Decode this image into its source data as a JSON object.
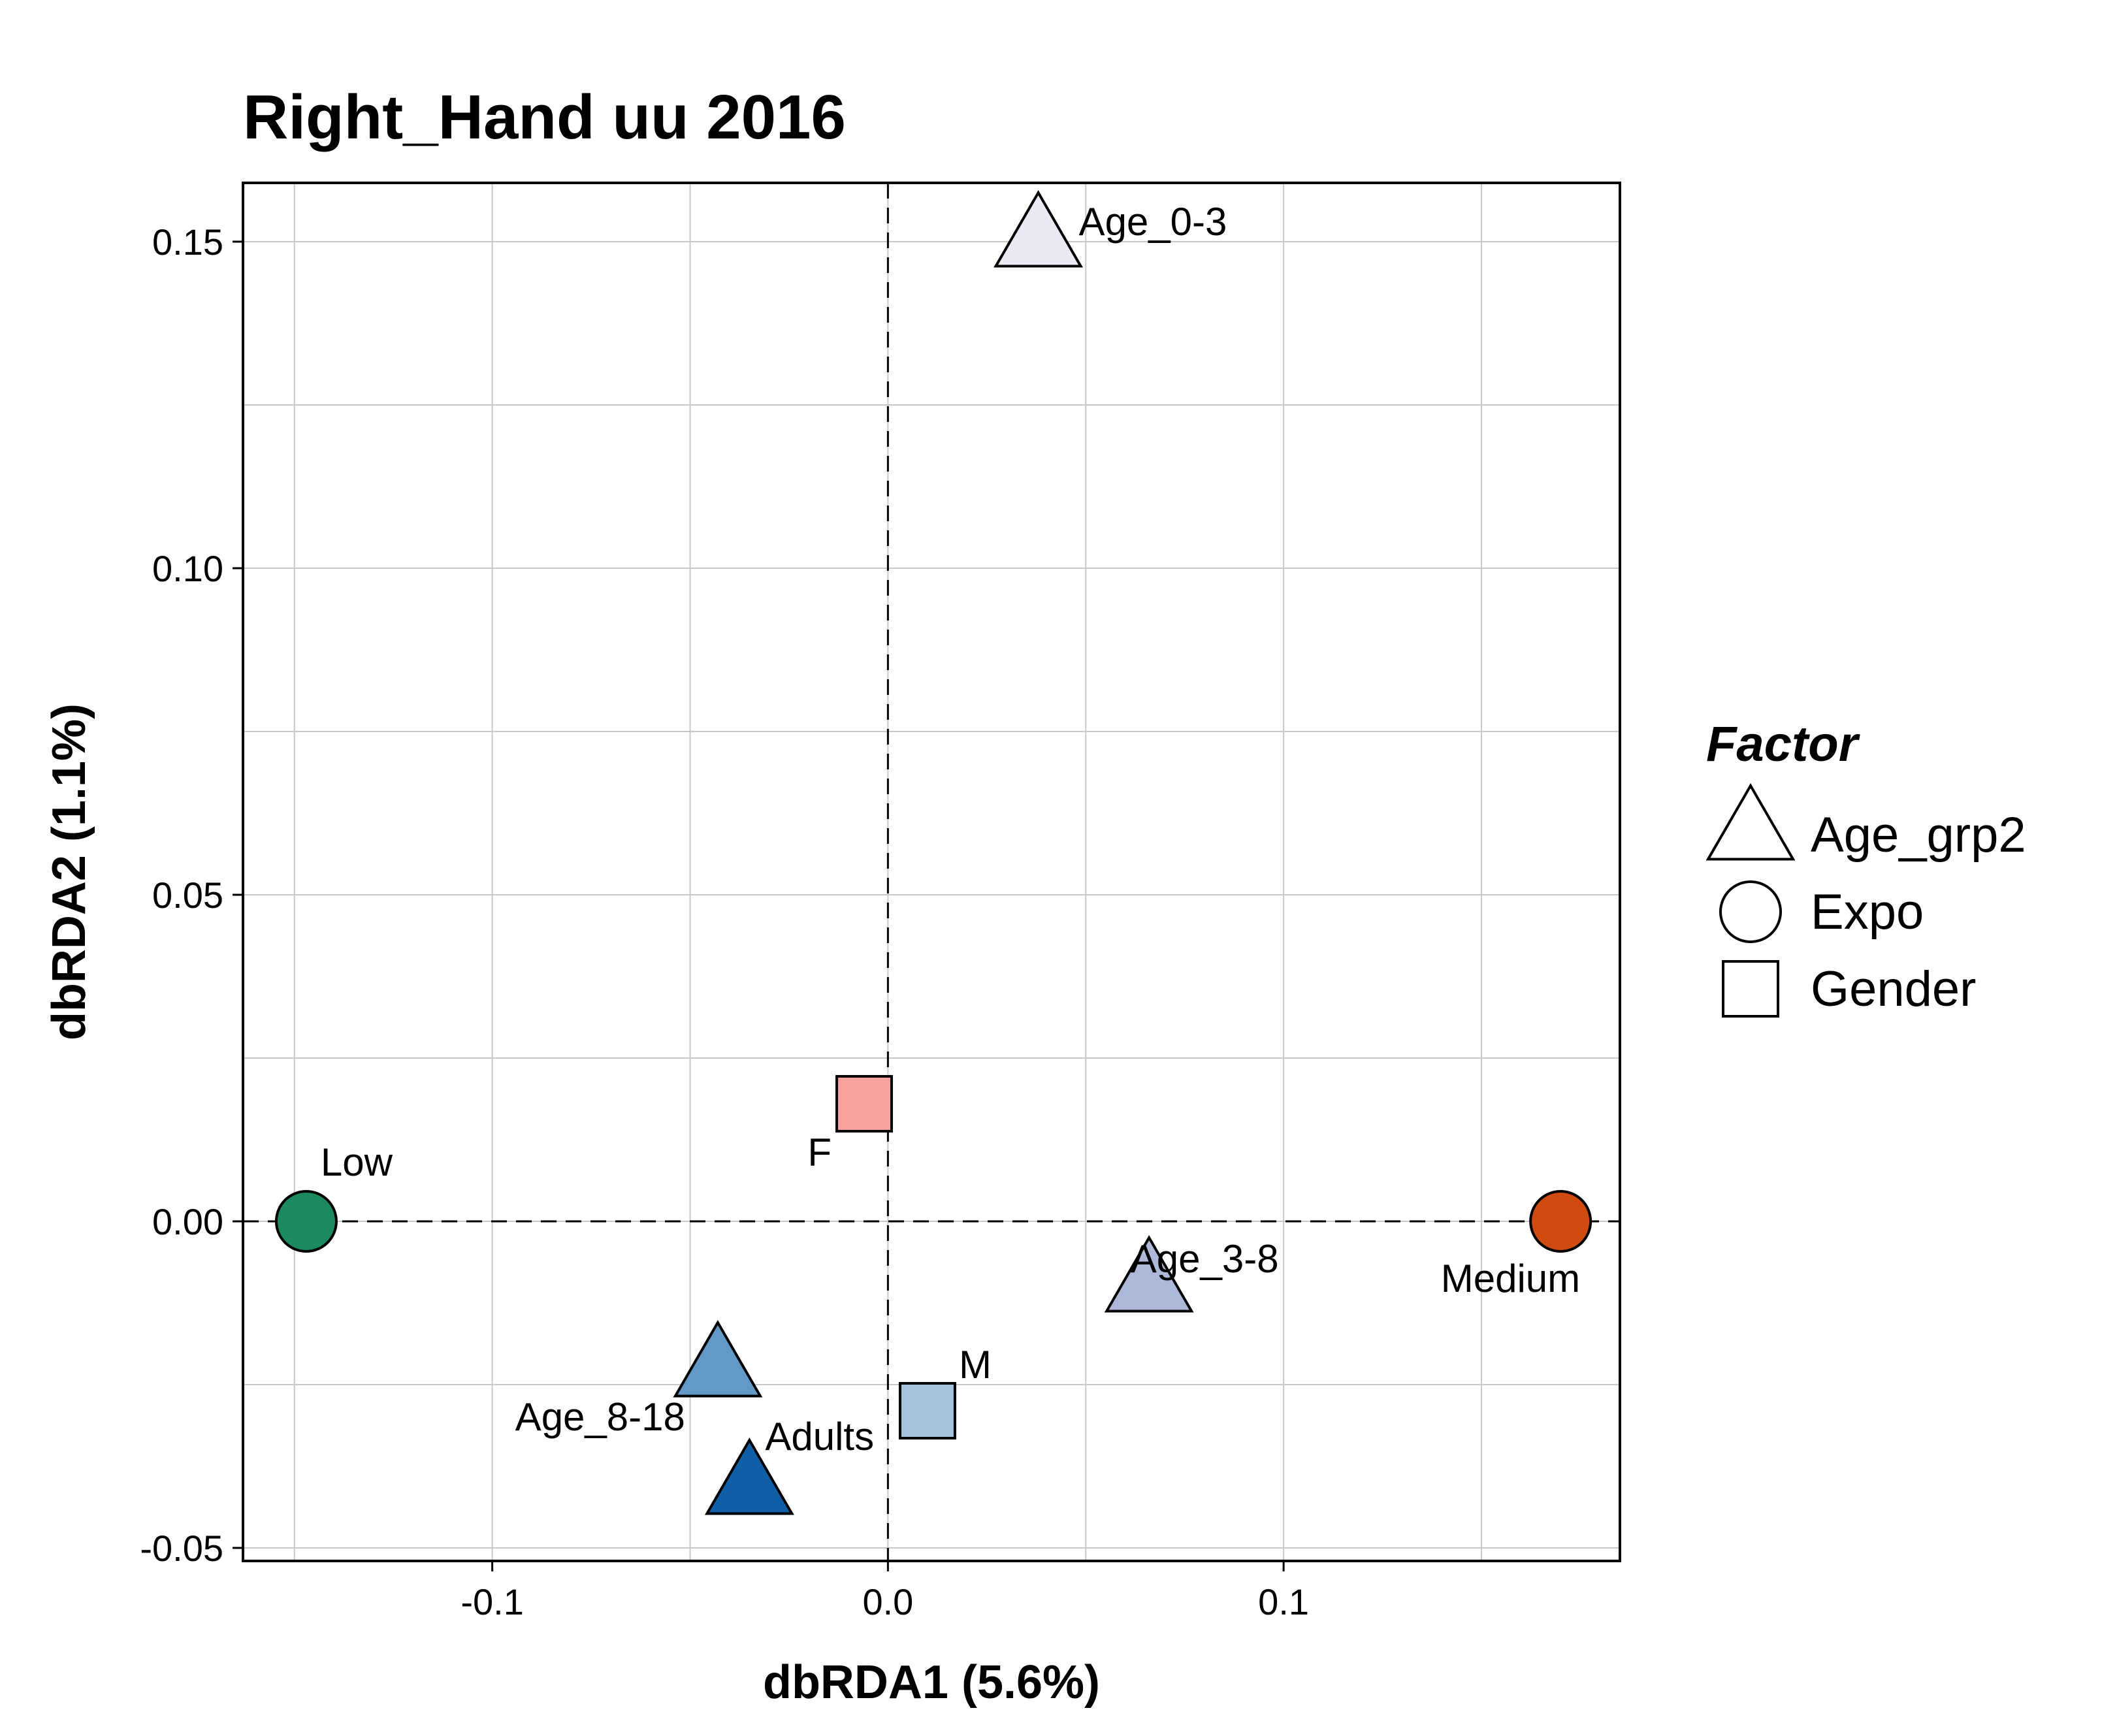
{
  "chart_data": {
    "type": "scatter",
    "title": "Right_Hand uu 2016",
    "xlabel": "dbRDA1 (5.6%)",
    "ylabel": "dbRDA2 (1.1%)",
    "xlim": [
      -0.163,
      0.185
    ],
    "ylim": [
      -0.052,
      0.159
    ],
    "x_ticks": [
      -0.1,
      0.0,
      0.1
    ],
    "x_tick_labels": [
      "-0.1",
      "0.0",
      "0.1"
    ],
    "y_ticks": [
      -0.05,
      0.0,
      0.05,
      0.1,
      0.15
    ],
    "y_tick_labels": [
      "-0.05",
      "0.00",
      "0.05",
      "0.10",
      "0.15"
    ],
    "grid": true,
    "reference_lines": {
      "x": 0,
      "y": 0,
      "style": "dashed"
    },
    "legend": {
      "title": "Factor",
      "placement": "right",
      "entries": [
        {
          "label": "Age_grp2",
          "shape": "triangle"
        },
        {
          "label": "Expo",
          "shape": "circle"
        },
        {
          "label": "Gender",
          "shape": "square"
        }
      ]
    },
    "points": [
      {
        "label": "Age_0-3",
        "factor": "Age_grp2",
        "shape": "triangle",
        "x": 0.038,
        "y": 0.15,
        "color": "#ebe9f4",
        "label_pos": "right"
      },
      {
        "label": "Age_3-8",
        "factor": "Age_grp2",
        "shape": "triangle",
        "x": 0.066,
        "y": -0.01,
        "color": "#aeb9d9",
        "label_pos": "above"
      },
      {
        "label": "Age_8-18",
        "factor": "Age_grp2",
        "shape": "triangle",
        "x": -0.043,
        "y": -0.023,
        "color": "#6399c6",
        "label_pos": "below-left"
      },
      {
        "label": "Adults",
        "factor": "Age_grp2",
        "shape": "triangle",
        "x": -0.035,
        "y": -0.041,
        "color": "#0f5fa6",
        "label_pos": "above-right"
      },
      {
        "label": "Low",
        "factor": "Expo",
        "shape": "circle",
        "x": -0.147,
        "y": 0.0,
        "color": "#1b8a5f",
        "label_pos": "above-right"
      },
      {
        "label": "Medium",
        "factor": "Expo",
        "shape": "circle",
        "x": 0.17,
        "y": 0.0,
        "color": "#cf4b10",
        "label_pos": "below-left"
      },
      {
        "label": "F",
        "factor": "Gender",
        "shape": "square",
        "x": -0.006,
        "y": 0.018,
        "color": "#f5a39b",
        "label_pos": "below-left"
      },
      {
        "label": "M",
        "factor": "Gender",
        "shape": "square",
        "x": 0.01,
        "y": -0.029,
        "color": "#a7c2de",
        "label_pos": "above-right"
      }
    ]
  }
}
